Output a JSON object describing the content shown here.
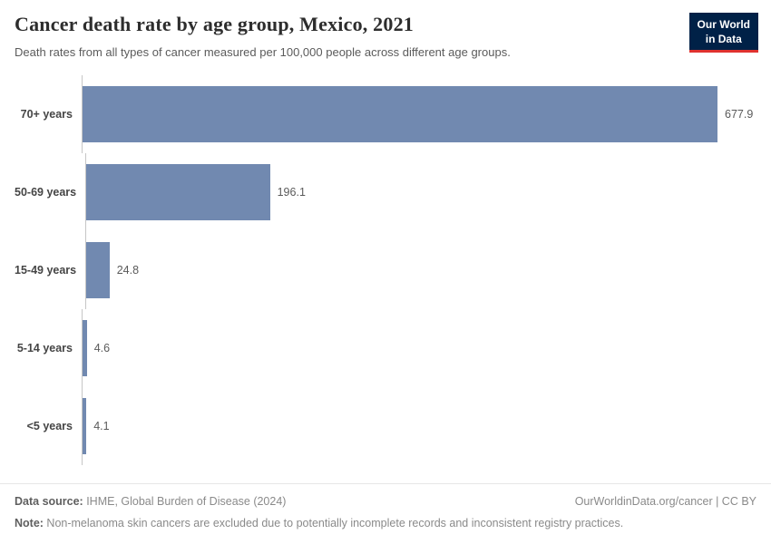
{
  "header": {
    "title": "Cancer death rate by age group, Mexico, 2021",
    "subtitle": "Death rates from all types of cancer measured per 100,000 people across different age groups.",
    "logo": {
      "line1": "Our World",
      "line2": "in Data"
    }
  },
  "chart_data": {
    "type": "bar",
    "orientation": "horizontal",
    "categories": [
      "70+ years",
      "50-69 years",
      "15-49 years",
      "5-14 years",
      "<5 years"
    ],
    "values": [
      677.9,
      196.1,
      24.8,
      4.6,
      4.1
    ],
    "value_labels": [
      "677.9",
      "196.1",
      "24.8",
      "4.6",
      "4.1"
    ],
    "title": "Cancer death rate by age group, Mexico, 2021",
    "xlabel": "",
    "ylabel": "",
    "xlim": [
      0,
      700
    ],
    "grid": false,
    "legend": "none",
    "bar_color": "#7189b0",
    "axis_color": "#c6c6c6"
  },
  "colors": {
    "bar": "#7189b0",
    "logo_background": "#002147",
    "logo_accent": "#e0322f"
  },
  "footer": {
    "source_label": "Data source:",
    "source_text": " IHME, Global Burden of Disease (2024)",
    "link_text": "OurWorldinData.org/cancer | CC BY",
    "note_label": "Note:",
    "note_text": " Non-melanoma skin cancers are excluded due to potentially incomplete records and inconsistent registry practices."
  }
}
